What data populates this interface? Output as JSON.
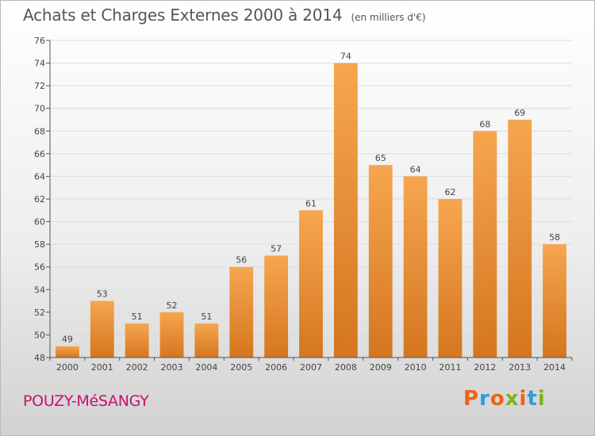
{
  "title": "Achats et Charges Externes 2000 à 2014",
  "unit": "(en milliers d'€)",
  "town": "POUZY-MéSANGY",
  "brand": "Proxiti",
  "colors": {
    "bar_light": "#f6a64f",
    "bar_dark": "#d4761f",
    "axis": "#555555",
    "gridline": "#dddddd",
    "text": "#444444",
    "town": "#c4136a",
    "brand_letters": [
      "#e8641c",
      "#2f9ad6",
      "#e8641c",
      "#7ab51d",
      "#e8641c",
      "#2f9ad6",
      "#7ab51d"
    ]
  },
  "chart_data": {
    "type": "bar",
    "categories": [
      "2000",
      "2001",
      "2002",
      "2003",
      "2004",
      "2005",
      "2006",
      "2007",
      "2008",
      "2009",
      "2010",
      "2011",
      "2012",
      "2013",
      "2014"
    ],
    "values": [
      49,
      53,
      51,
      52,
      51,
      56,
      57,
      61,
      74,
      65,
      64,
      62,
      68,
      69,
      58
    ],
    "ylim": [
      48,
      76
    ],
    "yticks": [
      48,
      50,
      52,
      54,
      56,
      58,
      60,
      62,
      64,
      66,
      68,
      70,
      72,
      74,
      76
    ],
    "title": "Achats et Charges Externes 2000 à 2014",
    "xlabel": "",
    "ylabel": "",
    "grid": true,
    "data_labels": true
  }
}
